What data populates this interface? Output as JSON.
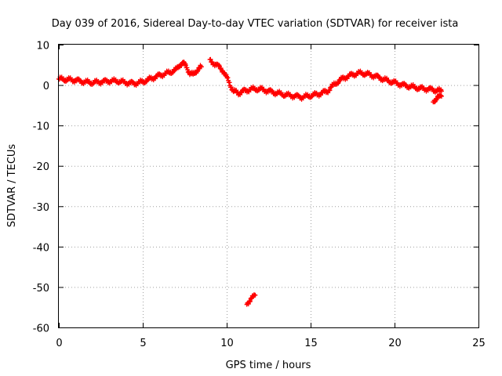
{
  "chart_data": {
    "type": "scatter",
    "title": "Day 039 of 2016, Sidereal Day-to-day VTEC variation (SDTVAR) for receiver ista",
    "xlabel": "GPS time / hours",
    "ylabel": "SDTVAR / TECUs",
    "xlim": [
      0,
      25
    ],
    "ylim": [
      -60,
      10
    ],
    "x_ticks": [
      0,
      5,
      10,
      15,
      20,
      25
    ],
    "y_ticks": [
      10,
      0,
      -10,
      -20,
      -30,
      -40,
      -50,
      -60
    ],
    "x_tick_labels": [
      "0",
      "5",
      "10",
      "15",
      "20",
      "25"
    ],
    "y_tick_labels": [
      "10",
      "0",
      "-10",
      "-20",
      "-30",
      "-40",
      "-50",
      "-60"
    ],
    "grid": true,
    "marker": "plus",
    "color": "#ff0000",
    "series_anchors": [
      [
        [
          0.0,
          1.5
        ],
        [
          1.0,
          1.2
        ],
        [
          1.5,
          0.8
        ],
        [
          2.0,
          0.6
        ],
        [
          2.5,
          0.8
        ],
        [
          3.0,
          1.0
        ],
        [
          3.5,
          1.0
        ],
        [
          4.0,
          0.6
        ],
        [
          4.5,
          0.4
        ],
        [
          5.0,
          0.8
        ],
        [
          5.5,
          1.6
        ],
        [
          6.0,
          2.4
        ],
        [
          6.5,
          3.0
        ],
        [
          7.0,
          3.8
        ],
        [
          7.2,
          5.0
        ],
        [
          7.4,
          5.5
        ],
        [
          7.6,
          4.5
        ],
        [
          7.8,
          3.0
        ],
        [
          8.0,
          2.5
        ],
        [
          8.3,
          4.0
        ],
        [
          8.5,
          4.5
        ]
      ],
      [
        [
          9.0,
          6.0
        ],
        [
          9.4,
          5.0
        ],
        [
          9.8,
          3.5
        ],
        [
          10.1,
          1.0
        ],
        [
          10.4,
          -1.5
        ],
        [
          10.7,
          -2.0
        ],
        [
          11.0,
          -1.5
        ],
        [
          11.5,
          -1.0
        ],
        [
          12.0,
          -1.0
        ],
        [
          12.5,
          -1.5
        ],
        [
          13.0,
          -2.0
        ],
        [
          13.5,
          -2.4
        ],
        [
          14.0,
          -2.7
        ],
        [
          14.5,
          -3.0
        ],
        [
          15.0,
          -2.6
        ],
        [
          15.5,
          -2.2
        ],
        [
          16.0,
          -1.5
        ],
        [
          16.5,
          0.5
        ],
        [
          17.0,
          1.8
        ],
        [
          17.5,
          2.6
        ],
        [
          18.0,
          3.0
        ],
        [
          18.5,
          2.6
        ],
        [
          19.0,
          2.0
        ],
        [
          19.5,
          1.2
        ],
        [
          20.0,
          0.6
        ],
        [
          20.5,
          0.0
        ],
        [
          21.0,
          -0.4
        ],
        [
          21.5,
          -0.8
        ],
        [
          22.0,
          -1.0
        ],
        [
          22.5,
          -1.3
        ],
        [
          22.8,
          -1.5
        ]
      ],
      [
        [
          22.3,
          -4.0
        ],
        [
          22.6,
          -3.0
        ],
        [
          22.8,
          -2.8
        ]
      ],
      [
        [
          11.2,
          -54.0
        ],
        [
          11.5,
          -52.8
        ],
        [
          11.7,
          -52.0
        ]
      ]
    ]
  }
}
